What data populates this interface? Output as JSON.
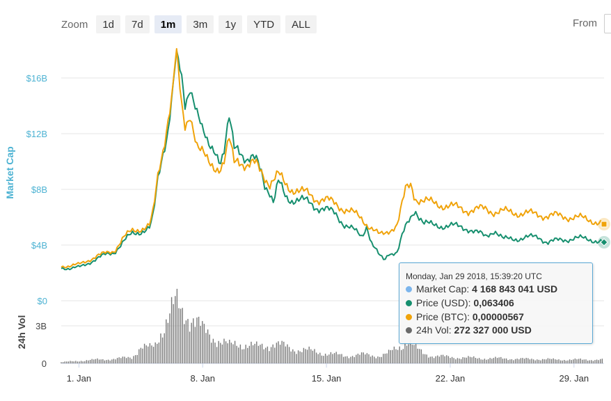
{
  "zoom": {
    "label": "Zoom",
    "buttons": [
      "1d",
      "7d",
      "1m",
      "3m",
      "1y",
      "YTD",
      "ALL"
    ],
    "active": "1m"
  },
  "range": {
    "from_label": "From"
  },
  "colors": {
    "market_cap": "#7cb5ec",
    "price_usd": "#168f6e",
    "price_btc": "#f0a30a",
    "volume": "#6a6a6a",
    "axis_label": "#4eb3d3",
    "tooltip_border": "#5aa9d6"
  },
  "tooltip": {
    "header": "Monday, Jan 29 2018, 15:39:20 UTC",
    "rows": [
      {
        "label": "Market Cap:",
        "value": "4 168 843 041 USD",
        "color": "#7cb5ec"
      },
      {
        "label": "Price (USD):",
        "value": "0,063406",
        "color": "#168f6e"
      },
      {
        "label": "Price (BTC):",
        "value": "0,00000567",
        "color": "#f0a30a"
      },
      {
        "label": "24h Vol:",
        "value": "272 327 000 USD",
        "color": "#6a6a6a"
      }
    ]
  },
  "chart_data": {
    "type": "line",
    "x_tick_labels": [
      "1. Jan",
      "8. Jan",
      "15. Jan",
      "22. Jan",
      "29. Jan"
    ],
    "y_axis": {
      "label": "Market Cap",
      "tick_labels": [
        "$0",
        "$4B",
        "$8B",
        "$12B",
        "$16B"
      ],
      "ylim_billion_usd": [
        0,
        18.5
      ]
    },
    "volume_axis": {
      "label": "24h Vol",
      "tick_labels": [
        "0",
        "3B"
      ],
      "ylim_billion_usd": [
        0,
        5
      ]
    },
    "x_range_days": [
      -1.0,
      29.7
    ],
    "series": [
      {
        "name": "Price (USD)",
        "key": "usd",
        "points": [
          [
            -1,
            2.4
          ],
          [
            -0.5,
            2.3
          ],
          [
            0,
            2.4
          ],
          [
            0.5,
            2.7
          ],
          [
            1,
            3
          ],
          [
            1.5,
            3.3
          ],
          [
            2,
            3.5
          ],
          [
            2.5,
            4.2
          ],
          [
            3,
            4.8
          ],
          [
            3.5,
            5
          ],
          [
            4,
            5.2
          ],
          [
            4.2,
            6
          ],
          [
            4.5,
            9
          ],
          [
            4.8,
            11
          ],
          [
            5,
            12
          ],
          [
            5.3,
            15
          ],
          [
            5.5,
            17.7
          ],
          [
            5.8,
            16
          ],
          [
            6,
            14
          ],
          [
            6.3,
            15.5
          ],
          [
            6.7,
            13.5
          ],
          [
            7,
            12
          ],
          [
            7.3,
            11.2
          ],
          [
            7.7,
            11
          ],
          [
            8,
            10
          ],
          [
            8.2,
            10.5
          ],
          [
            8.5,
            13
          ],
          [
            8.8,
            11
          ],
          [
            9,
            11.2
          ],
          [
            9.5,
            10
          ],
          [
            10,
            10.1
          ],
          [
            10.3,
            9.5
          ],
          [
            10.5,
            8.5
          ],
          [
            10.8,
            7.8
          ],
          [
            11,
            7
          ],
          [
            11.3,
            8.5
          ],
          [
            11.7,
            7.5
          ],
          [
            12,
            7.3
          ],
          [
            12.5,
            7.2
          ],
          [
            13,
            7.1
          ],
          [
            13.5,
            6.7
          ],
          [
            14,
            6.5
          ],
          [
            14.5,
            6.3
          ],
          [
            15,
            5.5
          ],
          [
            15.5,
            5.1
          ],
          [
            16,
            4.6
          ],
          [
            16.3,
            5.5
          ],
          [
            16.5,
            4.3
          ],
          [
            17,
            3.2
          ],
          [
            17.3,
            2.9
          ],
          [
            17.5,
            3.4
          ],
          [
            18,
            3.5
          ],
          [
            18.3,
            4.7
          ],
          [
            18.5,
            5.3
          ],
          [
            18.8,
            6
          ],
          [
            19,
            6.6
          ],
          [
            19.5,
            5.6
          ],
          [
            20,
            5.4
          ],
          [
            21,
            5.4
          ],
          [
            22,
            5.2
          ],
          [
            23,
            4.6
          ],
          [
            23.5,
            5.1
          ],
          [
            24,
            4.4
          ],
          [
            25,
            4.5
          ],
          [
            26,
            4.6
          ],
          [
            26.5,
            4.2
          ],
          [
            27,
            4.3
          ],
          [
            28,
            4.5
          ],
          [
            29,
            4.4
          ],
          [
            29.7,
            4.2
          ]
        ]
      },
      {
        "name": "Price (BTC)",
        "key": "btc",
        "points": [
          [
            -1,
            2.5
          ],
          [
            -0.5,
            2.5
          ],
          [
            0,
            2.6
          ],
          [
            0.5,
            2.9
          ],
          [
            1,
            3.2
          ],
          [
            1.5,
            3.4
          ],
          [
            2,
            3.6
          ],
          [
            2.5,
            4.5
          ],
          [
            3,
            5
          ],
          [
            3.5,
            5.2
          ],
          [
            4,
            5.4
          ],
          [
            4.2,
            6.3
          ],
          [
            4.5,
            9.2
          ],
          [
            4.8,
            11.2
          ],
          [
            5,
            12.8
          ],
          [
            5.3,
            15
          ],
          [
            5.5,
            18
          ],
          [
            5.8,
            14
          ],
          [
            6,
            12.5
          ],
          [
            6.3,
            13.5
          ],
          [
            6.7,
            11
          ],
          [
            7,
            10.5
          ],
          [
            7.3,
            10
          ],
          [
            7.7,
            9.7
          ],
          [
            8,
            9.5
          ],
          [
            8.2,
            9.8
          ],
          [
            8.5,
            11.5
          ],
          [
            8.8,
            10
          ],
          [
            9,
            10.3
          ],
          [
            9.5,
            9.6
          ],
          [
            10,
            9.8
          ],
          [
            10.3,
            9.4
          ],
          [
            10.5,
            9
          ],
          [
            10.8,
            8.4
          ],
          [
            11,
            8.6
          ],
          [
            11.3,
            9
          ],
          [
            11.7,
            8.4
          ],
          [
            12,
            8.1
          ],
          [
            12.5,
            7.8
          ],
          [
            13,
            7.7
          ],
          [
            13.5,
            7.3
          ],
          [
            14,
            7.2
          ],
          [
            14.5,
            7
          ],
          [
            15,
            6.6
          ],
          [
            15.5,
            6.3
          ],
          [
            16,
            5.9
          ],
          [
            16.3,
            5.5
          ],
          [
            16.5,
            5.3
          ],
          [
            17,
            4.7
          ],
          [
            17.3,
            4.8
          ],
          [
            17.5,
            5
          ],
          [
            18,
            5.5
          ],
          [
            18.3,
            7
          ],
          [
            18.5,
            8
          ],
          [
            18.8,
            8.3
          ],
          [
            19,
            7.4
          ],
          [
            19.5,
            7.2
          ],
          [
            20,
            7
          ],
          [
            21,
            6.8
          ],
          [
            22,
            6.5
          ],
          [
            23,
            6.6
          ],
          [
            23.5,
            6.4
          ],
          [
            24,
            6.4
          ],
          [
            25,
            6.3
          ],
          [
            26,
            6.2
          ],
          [
            26.5,
            6.1
          ],
          [
            27,
            6.1
          ],
          [
            28,
            6
          ],
          [
            29,
            5.8
          ],
          [
            29.7,
            5.5
          ]
        ]
      },
      {
        "name": "24h Vol",
        "key": "vol",
        "points": [
          [
            -1,
            0.1
          ],
          [
            0,
            0.2
          ],
          [
            1,
            0.3
          ],
          [
            2,
            0.35
          ],
          [
            3,
            0.5
          ],
          [
            3.5,
            1.3
          ],
          [
            4,
            1.2
          ],
          [
            4.3,
            1.4
          ],
          [
            4.7,
            2.8
          ],
          [
            5,
            3.6
          ],
          [
            5.3,
            4.3
          ],
          [
            5.5,
            4.6
          ],
          [
            5.8,
            4
          ],
          [
            6,
            4.1
          ],
          [
            6.5,
            3.6
          ],
          [
            7,
            2.6
          ],
          [
            7.5,
            2.2
          ],
          [
            8,
            1.8
          ],
          [
            8.5,
            1.4
          ],
          [
            9,
            1.6
          ],
          [
            9.5,
            1.5
          ],
          [
            10,
            1.3
          ],
          [
            10.5,
            1.4
          ],
          [
            11,
            1.6
          ],
          [
            11.5,
            1.4
          ],
          [
            12,
            1.2
          ],
          [
            13,
            1
          ],
          [
            14,
            0.8
          ],
          [
            15,
            0.6
          ],
          [
            16,
            0.7
          ],
          [
            17,
            0.6
          ],
          [
            17.5,
            0.8
          ],
          [
            18,
            1.2
          ],
          [
            18.3,
            1.5
          ],
          [
            18.5,
            1.9
          ],
          [
            18.8,
            1.6
          ],
          [
            19,
            1.2
          ],
          [
            19.5,
            0.8
          ],
          [
            20,
            0.6
          ],
          [
            21,
            0.5
          ],
          [
            22,
            0.45
          ],
          [
            23,
            0.4
          ],
          [
            24,
            0.4
          ],
          [
            25,
            0.35
          ],
          [
            26,
            0.35
          ],
          [
            27,
            0.3
          ],
          [
            28,
            0.3
          ],
          [
            29,
            0.3
          ],
          [
            29.7,
            0.3
          ]
        ]
      }
    ]
  }
}
